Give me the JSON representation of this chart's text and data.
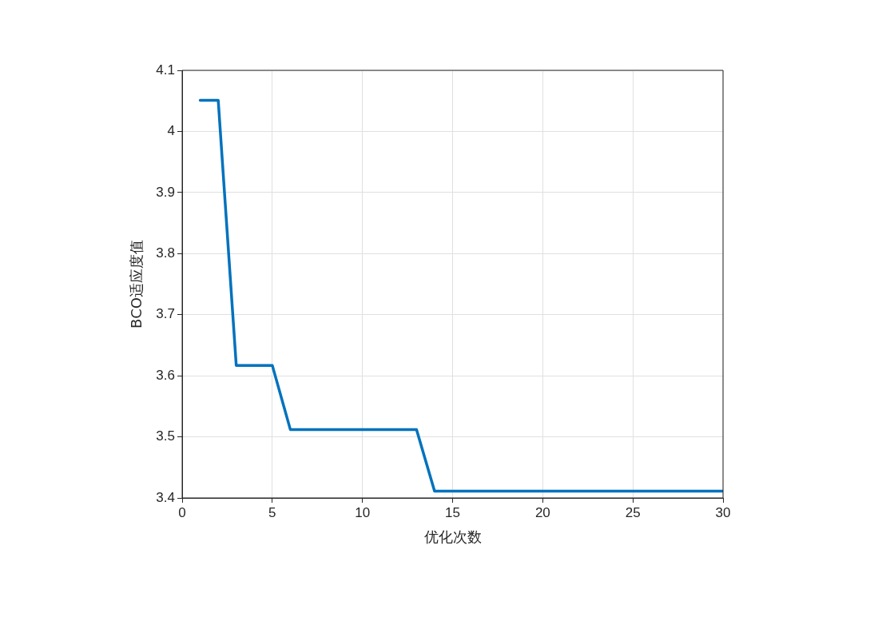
{
  "chart_data": {
    "type": "line",
    "xlabel": "优化次数",
    "ylabel": "BCO适应度值",
    "x": [
      1,
      2,
      3,
      4,
      5,
      6,
      7,
      8,
      9,
      10,
      11,
      12,
      13,
      14,
      15,
      16,
      17,
      18,
      19,
      20,
      21,
      22,
      23,
      24,
      25,
      26,
      27,
      28,
      29,
      30
    ],
    "series": [
      {
        "color": "#0072bd",
        "values": [
          4.051,
          4.051,
          3.617,
          3.617,
          3.617,
          3.512,
          3.512,
          3.512,
          3.512,
          3.512,
          3.512,
          3.512,
          3.512,
          3.411,
          3.411,
          3.411,
          3.411,
          3.411,
          3.411,
          3.411,
          3.411,
          3.411,
          3.411,
          3.411,
          3.411,
          3.411,
          3.411,
          3.411,
          3.411,
          3.411
        ]
      }
    ],
    "xlim": [
      0,
      30
    ],
    "xticks": [
      0,
      5,
      10,
      15,
      20,
      25,
      30
    ],
    "ylim": [
      3.4,
      4.1
    ],
    "yticks": [
      3.4,
      3.5,
      3.6,
      3.7,
      3.8,
      3.9,
      4,
      4.1
    ],
    "grid": true,
    "legend": false,
    "marker": "none",
    "line_style": "solid"
  }
}
